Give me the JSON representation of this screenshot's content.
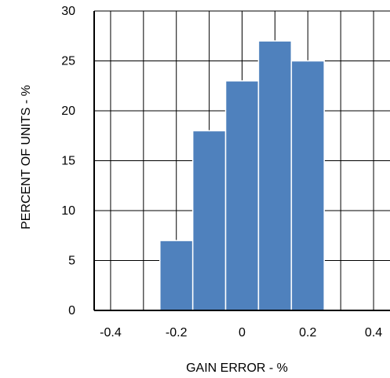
{
  "chart_data": {
    "type": "bar",
    "title": "",
    "xlabel": "GAIN ERROR - %",
    "ylabel": "PERCENT OF UNITS - %",
    "x_ticks": [
      "-0.4",
      "-0.2",
      "0",
      "0.2",
      "0.4"
    ],
    "y_ticks": [
      "0",
      "5",
      "10",
      "15",
      "20",
      "25",
      "30"
    ],
    "xlim": [
      -0.45,
      0.45
    ],
    "ylim": [
      0,
      30
    ],
    "grid": true,
    "bin_width": 0.1,
    "bins": [
      {
        "center": -0.2,
        "value": 7
      },
      {
        "center": -0.1,
        "value": 18
      },
      {
        "center": 0.0,
        "value": 23
      },
      {
        "center": 0.1,
        "value": 27
      },
      {
        "center": 0.2,
        "value": 25
      }
    ],
    "bar_color": "#4f81bd",
    "bar_edge_color": "#ffffff"
  }
}
